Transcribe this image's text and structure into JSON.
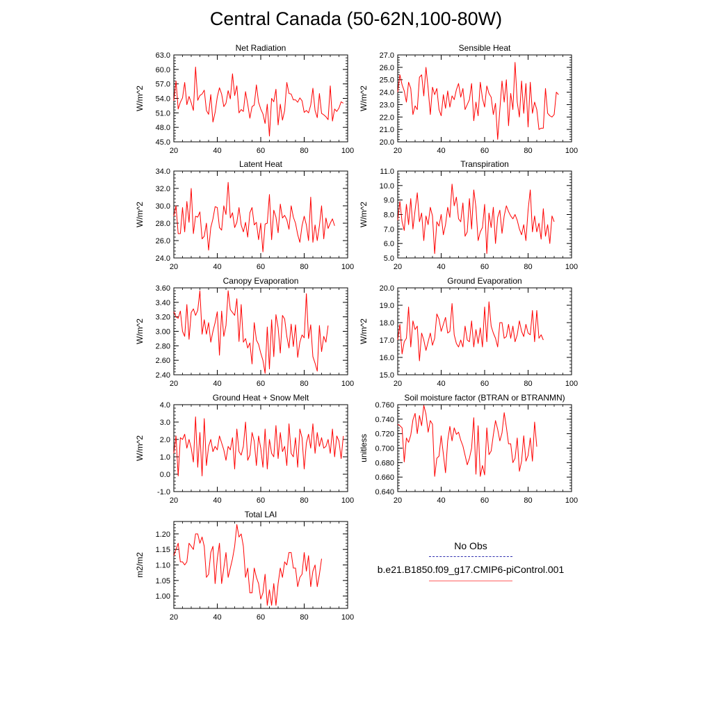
{
  "figure": {
    "title": "Central Canada (50-62N,100-80W)"
  },
  "legend": {
    "entries": [
      {
        "label": "No Obs",
        "color": "#3030b0",
        "style": "dashed"
      },
      {
        "label": "b.e21.B1850.f09_g17.CMIP6-piControl.001",
        "color": "#ff0000",
        "style": "solid"
      }
    ]
  },
  "colors": {
    "series": "#ff0000",
    "axis": "#000000"
  },
  "chart_data": [
    {
      "type": "line",
      "title": "Net Radiation",
      "xlabel": "",
      "ylabel": "W/m^2",
      "xlim": [
        20,
        100
      ],
      "ylim": [
        45,
        63
      ],
      "xticks": [
        20,
        40,
        60,
        80,
        100
      ],
      "xtick_labels": [
        "20",
        "40",
        "60",
        "80",
        "100"
      ],
      "yticks": [
        45,
        48,
        51,
        54,
        57,
        60,
        63
      ],
      "ytick_labels": [
        "45.0",
        "48.0",
        "51.0",
        "54.0",
        "57.0",
        "60.0",
        "63.0"
      ],
      "x_start": 20,
      "x_step": 1,
      "series": [
        {
          "values": [
            53.5,
            57.6,
            51.8,
            53.2,
            54.1,
            57.3,
            52.7,
            54.4,
            53.1,
            51.5,
            60.5,
            53.6,
            54.6,
            54.9,
            55.7,
            51.5,
            50.7,
            54.8,
            49.1,
            51.1,
            54.3,
            56.2,
            54.9,
            52.3,
            53.0,
            55.6,
            53.9,
            59.1,
            54.6,
            56.6,
            51.0,
            51.7,
            51.3,
            55.4,
            52.8,
            49.9,
            52.3,
            52.6,
            56.8,
            53.2,
            51.8,
            50.8,
            48.8,
            52.8,
            46.2,
            54.0,
            53.3,
            55.9,
            48.5,
            52.8,
            49.5,
            51.5,
            57.3,
            55.0,
            54.9,
            53.7,
            53.7,
            53.2,
            54.1,
            53.5,
            51.1,
            51.5,
            51.0,
            52.6,
            56.1,
            51.5,
            50.0,
            55.0,
            50.9,
            50.6,
            50.2,
            49.6,
            56.6,
            49.3,
            51.8,
            51.3,
            52.0,
            53.3,
            53.0
          ]
        }
      ]
    },
    {
      "type": "line",
      "title": "Sensible Heat",
      "xlabel": "",
      "ylabel": "W/m^2",
      "xlim": [
        20,
        100
      ],
      "ylim": [
        20,
        27
      ],
      "xticks": [
        20,
        40,
        60,
        80,
        100
      ],
      "xtick_labels": [
        "20",
        "40",
        "60",
        "80",
        "100"
      ],
      "yticks": [
        20,
        21,
        22,
        23,
        24,
        25,
        26,
        27
      ],
      "ytick_labels": [
        "20.0",
        "21.0",
        "22.0",
        "23.0",
        "24.0",
        "25.0",
        "26.0",
        "27.0"
      ],
      "x_start": 20,
      "x_step": 1,
      "series": [
        {
          "values": [
            24.0,
            25.4,
            24.6,
            24.1,
            23.2,
            24.8,
            24.3,
            22.2,
            22.9,
            22.6,
            25.2,
            25.4,
            23.7,
            26.0,
            24.3,
            22.2,
            24.4,
            23.8,
            24.3,
            22.6,
            22.1,
            23.8,
            22.7,
            24.1,
            22.8,
            23.7,
            23.4,
            24.2,
            24.7,
            23.6,
            24.3,
            22.6,
            23.0,
            23.4,
            24.7,
            21.7,
            23.2,
            22.1,
            24.8,
            23.5,
            22.8,
            24.5,
            23.9,
            23.6,
            22.2,
            23.1,
            20.2,
            22.6,
            24.9,
            23.2,
            25.0,
            21.3,
            23.9,
            22.6,
            26.4,
            23.2,
            22.0,
            24.9,
            22.3,
            24.7,
            21.2,
            24.8,
            22.3,
            23.2,
            22.6,
            21.0,
            21.1,
            21.1,
            24.3,
            22.3,
            22.1,
            22.0,
            22.2,
            24.0,
            23.8
          ]
        }
      ]
    },
    {
      "type": "line",
      "title": "Latent Heat",
      "xlabel": "",
      "ylabel": "W/m^2",
      "xlim": [
        20,
        100
      ],
      "ylim": [
        24,
        34
      ],
      "xticks": [
        20,
        40,
        60,
        80,
        100
      ],
      "xtick_labels": [
        "20",
        "40",
        "60",
        "80",
        "100"
      ],
      "yticks": [
        24,
        26,
        28,
        30,
        32,
        34
      ],
      "ytick_labels": [
        "24.0",
        "26.0",
        "28.0",
        "30.0",
        "32.0",
        "34.0"
      ],
      "x_start": 20,
      "x_step": 1,
      "series": [
        {
          "values": [
            28.8,
            30.0,
            26.8,
            26.8,
            29.8,
            27.0,
            30.5,
            28.1,
            32.0,
            26.8,
            28.8,
            28.7,
            29.3,
            26.2,
            26.5,
            28.0,
            24.9,
            27.5,
            28.5,
            29.9,
            29.8,
            27.5,
            27.2,
            30.0,
            29.0,
            32.7,
            28.6,
            29.2,
            27.5,
            28.1,
            29.8,
            27.8,
            27.0,
            28.1,
            26.4,
            29.2,
            29.8,
            27.8,
            28.1,
            26.1,
            28.0,
            24.7,
            27.9,
            28.0,
            31.3,
            26.1,
            29.5,
            28.7,
            26.9,
            30.2,
            28.6,
            28.9,
            28.4,
            27.3,
            30.0,
            28.7,
            28.0,
            26.7,
            25.8,
            27.7,
            28.8,
            27.8,
            26.0,
            31.0,
            25.8,
            27.8,
            26.0,
            27.7,
            30.0,
            26.2,
            28.6,
            27.4,
            28.0,
            28.5,
            27.7
          ]
        }
      ]
    },
    {
      "type": "line",
      "title": "Transpiration",
      "xlabel": "",
      "ylabel": "W/m^2",
      "xlim": [
        20,
        100
      ],
      "ylim": [
        5,
        11
      ],
      "xticks": [
        20,
        40,
        60,
        80,
        100
      ],
      "xtick_labels": [
        "20",
        "40",
        "60",
        "80",
        "100"
      ],
      "yticks": [
        5,
        6,
        7,
        8,
        9,
        10,
        11
      ],
      "ytick_labels": [
        "5.0",
        "6.0",
        "7.0",
        "8.0",
        "9.0",
        "10.0",
        "11.0"
      ],
      "x_start": 20,
      "x_step": 1,
      "series": [
        {
          "values": [
            7.6,
            8.9,
            7.5,
            6.9,
            8.7,
            7.3,
            9.1,
            7.0,
            8.3,
            9.5,
            7.5,
            8.1,
            6.2,
            7.9,
            7.3,
            8.5,
            7.9,
            5.3,
            7.5,
            7.2,
            8.0,
            6.6,
            7.3,
            8.5,
            7.8,
            10.1,
            8.6,
            9.2,
            7.7,
            7.5,
            8.8,
            6.5,
            6.8,
            9.1,
            7.0,
            9.7,
            8.5,
            6.2,
            6.8,
            7.1,
            8.7,
            5.3,
            8.1,
            7.1,
            8.5,
            6.0,
            7.8,
            8.3,
            6.7,
            7.9,
            8.6,
            8.2,
            7.9,
            7.7,
            8.0,
            7.6,
            7.0,
            6.6,
            7.3,
            6.2,
            8.3,
            9.7,
            6.8,
            7.9,
            6.8,
            7.4,
            6.3,
            8.4,
            6.5,
            7.3,
            6.0,
            7.9,
            7.5
          ]
        }
      ]
    },
    {
      "type": "line",
      "title": "Canopy Evaporation",
      "xlabel": "",
      "ylabel": "W/m^2",
      "xlim": [
        20,
        100
      ],
      "ylim": [
        2.4,
        3.6
      ],
      "xticks": [
        20,
        40,
        60,
        80,
        100
      ],
      "xtick_labels": [
        "20",
        "40",
        "60",
        "80",
        "100"
      ],
      "yticks": [
        2.4,
        2.6,
        2.8,
        3.0,
        3.2,
        3.4,
        3.6
      ],
      "ytick_labels": [
        "2.40",
        "2.60",
        "2.80",
        "3.00",
        "3.20",
        "3.40",
        "3.60"
      ],
      "x_start": 20,
      "x_step": 1,
      "series": [
        {
          "values": [
            3.27,
            3.2,
            3.18,
            3.28,
            3.0,
            2.93,
            3.37,
            2.89,
            3.26,
            3.31,
            3.22,
            3.29,
            3.56,
            2.96,
            3.16,
            2.96,
            3.12,
            2.85,
            3.0,
            3.12,
            3.27,
            2.67,
            3.28,
            2.93,
            3.08,
            3.56,
            3.3,
            3.26,
            3.22,
            3.45,
            2.86,
            3.37,
            2.85,
            2.9,
            2.77,
            2.84,
            2.55,
            3.12,
            2.88,
            2.82,
            2.7,
            2.6,
            2.42,
            3.06,
            2.48,
            3.16,
            2.65,
            3.23,
            3.05,
            2.7,
            3.22,
            3.17,
            2.93,
            2.77,
            3.1,
            2.79,
            3.09,
            2.64,
            2.85,
            2.95,
            2.91,
            3.52,
            2.9,
            3.09,
            2.65,
            2.56,
            2.45,
            3.08,
            2.72,
            2.93,
            2.85,
            3.08
          ]
        }
      ]
    },
    {
      "type": "line",
      "title": "Ground Evaporation",
      "xlabel": "",
      "ylabel": "W/m^2",
      "xlim": [
        20,
        100
      ],
      "ylim": [
        15,
        20
      ],
      "xticks": [
        20,
        40,
        60,
        80,
        100
      ],
      "xtick_labels": [
        "20",
        "40",
        "60",
        "80",
        "100"
      ],
      "yticks": [
        15,
        16,
        17,
        18,
        19,
        20
      ],
      "ytick_labels": [
        "15.0",
        "16.0",
        "17.0",
        "18.0",
        "19.0",
        "20.0"
      ],
      "x_start": 20,
      "x_step": 1,
      "series": [
        {
          "values": [
            17.0,
            17.9,
            16.2,
            16.9,
            17.1,
            18.9,
            16.6,
            18.1,
            17.6,
            17.8,
            15.8,
            17.4,
            17.0,
            16.4,
            16.9,
            17.4,
            16.7,
            17.1,
            18.5,
            18.2,
            17.5,
            17.9,
            18.3,
            17.4,
            17.5,
            19.1,
            17.3,
            16.8,
            16.6,
            17.0,
            16.6,
            17.8,
            17.0,
            16.9,
            18.1,
            16.6,
            17.6,
            16.8,
            17.7,
            16.6,
            18.9,
            16.9,
            19.2,
            17.8,
            17.4,
            17.1,
            16.6,
            18.0,
            18.0,
            17.1,
            17.2,
            17.9,
            17.1,
            17.8,
            16.9,
            17.3,
            18.1,
            17.5,
            17.2,
            17.9,
            17.4,
            17.3,
            18.7,
            16.9,
            18.7,
            17.1,
            17.3,
            17.0
          ]
        }
      ]
    },
    {
      "type": "line",
      "title": "Ground Heat + Snow Melt",
      "xlabel": "",
      "ylabel": "W/m^2",
      "xlim": [
        20,
        100
      ],
      "ylim": [
        -1,
        4
      ],
      "xticks": [
        20,
        40,
        60,
        80,
        100
      ],
      "xtick_labels": [
        "20",
        "40",
        "60",
        "80",
        "100"
      ],
      "yticks": [
        -1,
        0,
        1,
        2,
        3,
        4
      ],
      "ytick_labels": [
        "-1.0",
        "0.0",
        "1.0",
        "2.0",
        "3.0",
        "4.0"
      ],
      "x_start": 20,
      "x_step": 1,
      "series": [
        {
          "values": [
            1.2,
            2.2,
            -0.1,
            2.1,
            2.0,
            2.3,
            1.5,
            2.0,
            1.5,
            0.7,
            3.3,
            0.4,
            2.4,
            -0.1,
            3.2,
            0.5,
            1.6,
            2.0,
            1.3,
            1.6,
            1.4,
            2.2,
            1.8,
            1.4,
            0.8,
            1.6,
            1.4,
            2.1,
            0.3,
            2.6,
            1.3,
            1.1,
            1.6,
            3.0,
            0.8,
            1.1,
            2.4,
            1.9,
            0.5,
            2.2,
            1.5,
            0.4,
            2.6,
            0.3,
            2.0,
            1.2,
            1.0,
            2.8,
            0.9,
            2.4,
            1.3,
            1.6,
            0.5,
            2.9,
            1.2,
            1.0,
            2.1,
            0.4,
            2.6,
            2.1,
            0.3,
            1.8,
            2.3,
            1.5,
            2.9,
            1.2,
            2.4,
            1.6,
            2.1,
            1.5,
            1.6,
            2.0,
            1.2,
            2.6,
            1.0,
            2.2,
            1.9,
            0.9,
            2.2
          ]
        }
      ]
    },
    {
      "type": "line",
      "title": "Soil moisture factor (BTRAN or BTRANMN)",
      "xlabel": "",
      "ylabel": "unitless",
      "xlim": [
        20,
        100
      ],
      "ylim": [
        0.64,
        0.76
      ],
      "xticks": [
        20,
        40,
        60,
        80,
        100
      ],
      "xtick_labels": [
        "20",
        "40",
        "60",
        "80",
        "100"
      ],
      "yticks": [
        0.64,
        0.66,
        0.68,
        0.7,
        0.72,
        0.74,
        0.76
      ],
      "ytick_labels": [
        "0.640",
        "0.660",
        "0.680",
        "0.700",
        "0.720",
        "0.740",
        "0.760"
      ],
      "x_start": 20,
      "x_step": 1,
      "series": [
        {
          "values": [
            0.733,
            0.731,
            0.728,
            0.681,
            0.714,
            0.708,
            0.718,
            0.739,
            0.748,
            0.72,
            0.745,
            0.731,
            0.759,
            0.747,
            0.722,
            0.738,
            0.733,
            0.661,
            0.686,
            0.689,
            0.717,
            0.692,
            0.666,
            0.71,
            0.73,
            0.71,
            0.728,
            0.719,
            0.722,
            0.711,
            0.703,
            0.69,
            0.677,
            0.686,
            0.7,
            0.742,
            0.664,
            0.731,
            0.661,
            0.676,
            0.663,
            0.728,
            0.691,
            0.696,
            0.718,
            0.738,
            0.726,
            0.71,
            0.721,
            0.749,
            0.729,
            0.706,
            0.706,
            0.68,
            0.686,
            0.714,
            0.668,
            0.682,
            0.717,
            0.682,
            0.69,
            0.714,
            0.682,
            0.736,
            0.702
          ]
        }
      ]
    },
    {
      "type": "line",
      "title": "Total LAI",
      "xlabel": "",
      "ylabel": "m2/m2",
      "xlim": [
        20,
        100
      ],
      "ylim": [
        0.96,
        1.24
      ],
      "xticks": [
        20,
        40,
        60,
        80,
        100
      ],
      "xtick_labels": [
        "20",
        "40",
        "60",
        "80",
        "100"
      ],
      "yticks": [
        1.0,
        1.05,
        1.1,
        1.15,
        1.2
      ],
      "ytick_labels": [
        "1.00",
        "1.05",
        "1.10",
        "1.15",
        "1.20"
      ],
      "x_start": 20,
      "x_step": 1,
      "series": [
        {
          "values": [
            1.13,
            1.15,
            1.17,
            1.11,
            1.11,
            1.1,
            1.11,
            1.17,
            1.16,
            1.15,
            1.2,
            1.2,
            1.17,
            1.19,
            1.16,
            1.06,
            1.07,
            1.14,
            1.16,
            1.04,
            1.12,
            1.17,
            1.04,
            1.09,
            1.14,
            1.06,
            1.09,
            1.12,
            1.16,
            1.23,
            1.19,
            1.2,
            1.16,
            1.06,
            1.09,
            1.01,
            1.01,
            1.09,
            1.06,
            1.04,
            0.99,
            1.01,
            1.07,
            0.97,
            1.02,
            0.97,
            1.04,
            0.97,
            1.04,
            1.09,
            1.06,
            1.11,
            1.1,
            1.14,
            1.14,
            1.09,
            1.09,
            1.03,
            1.06,
            1.07,
            1.14,
            1.08,
            1.13,
            1.03,
            1.08,
            1.1,
            1.03,
            1.07,
            1.12
          ]
        }
      ]
    }
  ]
}
